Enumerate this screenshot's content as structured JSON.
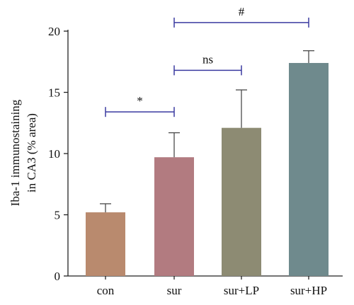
{
  "chart_data": {
    "type": "bar",
    "ylabel_lines": [
      "Iba-1 immunostaining",
      "in CA3 (% area)"
    ],
    "categories": [
      "con",
      "sur",
      "sur+LP",
      "sur+HP"
    ],
    "values": [
      5.2,
      9.7,
      12.1,
      17.4
    ],
    "errors": [
      0.7,
      2.0,
      3.1,
      1.0
    ],
    "colors": [
      "#b98a6e",
      "#b27b80",
      "#8d8b73",
      "#6f8a8d"
    ],
    "ylim": [
      0,
      20
    ],
    "yticks": [
      0,
      5,
      10,
      15,
      20
    ],
    "grid": false,
    "significance": [
      {
        "from": 0,
        "to": 1,
        "label": "*",
        "y": 13.4
      },
      {
        "from": 1,
        "to": 2,
        "label": "ns",
        "y": 16.8
      },
      {
        "from": 1,
        "to": 3,
        "label": "#",
        "y": 20.7
      }
    ],
    "significance_color": "#3a3aa0"
  }
}
